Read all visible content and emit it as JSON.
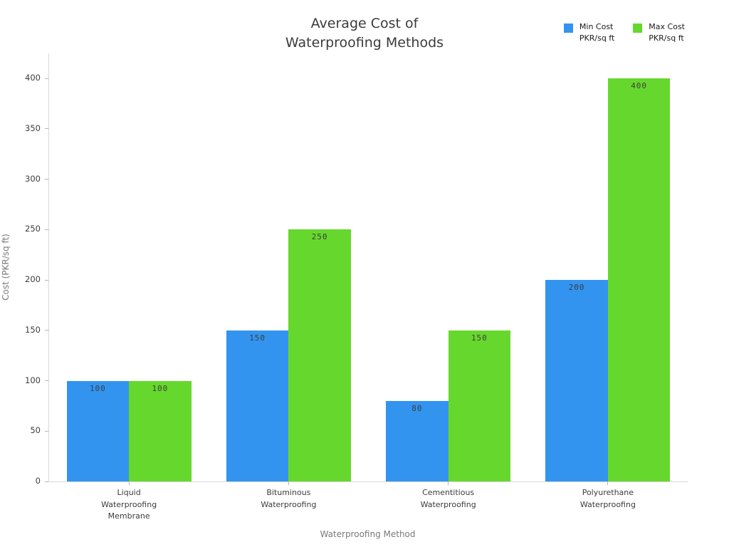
{
  "chart_data": {
    "type": "bar",
    "title": "Average Cost of\nWaterproofing Methods",
    "categories": [
      "Liquid\nWaterproofing\nMembrane",
      "Bituminous\nWaterproofing",
      "Cementitious\nWaterproofing",
      "Polyurethane\nWaterproofing"
    ],
    "series": [
      {
        "name": "Min Cost\nPKR/sq ft",
        "color": "#3394f0",
        "values": [
          100,
          150,
          80,
          200
        ]
      },
      {
        "name": "Max Cost\nPKR/sq ft",
        "color": "#66d82d",
        "values": [
          100,
          250,
          150,
          400
        ]
      }
    ],
    "xlabel": "Waterproofing Method",
    "ylabel": "Cost (PKR/sq ft)",
    "ylim": [
      0,
      400
    ],
    "ytick_step": 50,
    "grid": false,
    "legend_position": "top-right",
    "bar_labels": true,
    "axis_color": "#d9d9d9"
  }
}
